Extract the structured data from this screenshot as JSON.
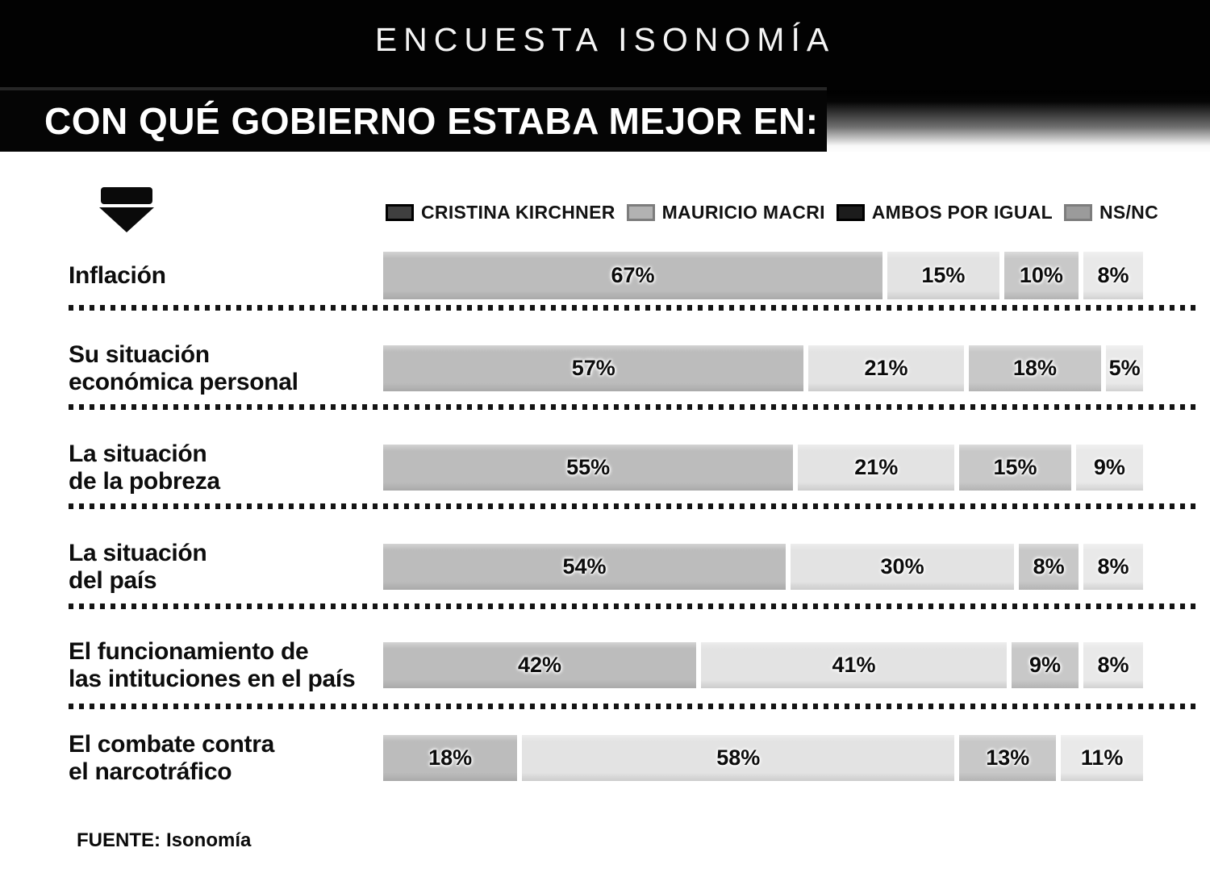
{
  "banner": {
    "title": "ENCUESTA ISONOMÍA"
  },
  "header": {
    "title": "CON QUÉ GOBIERNO ESTABA MEJOR EN:"
  },
  "legend": {
    "items": [
      {
        "label": "CRISTINA KIRCHNER",
        "swatch_color": "#3f3f3f",
        "swatch_border": "#000000"
      },
      {
        "label": "MAURICIO MACRI",
        "swatch_color": "#b2b2b2",
        "swatch_border": "#7d7d7d"
      },
      {
        "label": "AMBOS POR IGUAL",
        "swatch_color": "#1c1c1c",
        "swatch_border": "#000000"
      },
      {
        "label": "NS/NC",
        "swatch_color": "#9b9b9b",
        "swatch_border": "#7d7d7d"
      }
    ]
  },
  "chart_data": {
    "type": "bar",
    "orientation": "horizontal",
    "stacked": true,
    "unit": "%",
    "title": "CON QUÉ GOBIERNO ESTABA MEJOR EN:",
    "legend_position": "top",
    "xlim": [
      0,
      100
    ],
    "grid": false,
    "categories": [
      "Inflación",
      "Su situación económica personal",
      "La situación de la pobreza",
      "La situación del país",
      "El funcionamiento de las intituciones en el país",
      "El combate contra el narcotráfico"
    ],
    "category_label_lines": [
      [
        "Inflación"
      ],
      [
        "Su situación",
        "económica personal"
      ],
      [
        "La situación",
        "de la pobreza"
      ],
      [
        "La situación",
        "del país"
      ],
      [
        "El funcionamiento de",
        "las intituciones en el país"
      ],
      [
        "El combate contra",
        "el narcotráfico"
      ]
    ],
    "series": [
      {
        "name": "Cristina Kirchner",
        "values": [
          67,
          57,
          55,
          54,
          42,
          18
        ]
      },
      {
        "name": "Mauricio Macri",
        "values": [
          15,
          21,
          21,
          30,
          41,
          58
        ]
      },
      {
        "name": "Ambos por igual",
        "values": [
          10,
          18,
          15,
          8,
          9,
          13
        ]
      },
      {
        "name": "NS/NC",
        "values": [
          8,
          5,
          9,
          8,
          8,
          11
        ]
      }
    ],
    "bar_colors": [
      "#bcbcbc",
      "#e3e3e3",
      "#c8c8c8",
      "#e9e9e9"
    ]
  },
  "footer": {
    "source_label": "FUENTE:",
    "source_value": "Isonomía"
  }
}
